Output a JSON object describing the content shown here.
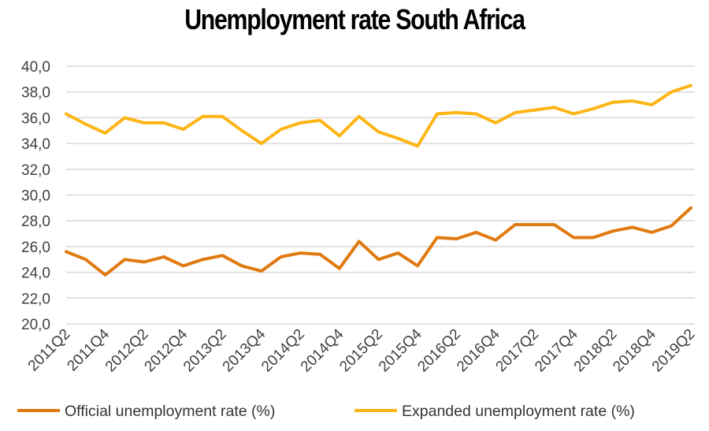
{
  "chart_data": {
    "type": "line",
    "title": "Unemployment rate South Africa",
    "xlabel": "",
    "ylabel": "",
    "ylim": [
      20,
      40
    ],
    "y_ticks": [
      "20,0",
      "22,0",
      "24,0",
      "26,0",
      "28,0",
      "30,0",
      "32,0",
      "34,0",
      "36,0",
      "38,0",
      "40,0"
    ],
    "categories": [
      "2011Q2",
      "2011Q3",
      "2011Q4",
      "2012Q1",
      "2012Q2",
      "2012Q3",
      "2012Q4",
      "2013Q1",
      "2013Q2",
      "2013Q3",
      "2013Q4",
      "2014Q1",
      "2014Q2",
      "2014Q3",
      "2014Q4",
      "2015Q1",
      "2015Q2",
      "2015Q3",
      "2015Q4",
      "2016Q1",
      "2016Q2",
      "2016Q3",
      "2016Q4",
      "2017Q1",
      "2017Q2",
      "2017Q3",
      "2017Q4",
      "2018Q1",
      "2018Q2",
      "2018Q3",
      "2018Q4",
      "2019Q1",
      "2019Q2"
    ],
    "x_tick_labels": [
      "2011Q2",
      "2011Q4",
      "2012Q2",
      "2012Q4",
      "2013Q2",
      "2013Q4",
      "2014Q2",
      "2014Q4",
      "2015Q2",
      "2015Q4",
      "2016Q2",
      "2016Q4",
      "2017Q2",
      "2017Q4",
      "2018Q2",
      "2018Q4",
      "2019Q2"
    ],
    "grid": "horizontal",
    "legend_position": "bottom",
    "series": [
      {
        "name": "Official unemployment rate (%)",
        "color": "#E07A10",
        "values": [
          25.6,
          25.0,
          23.8,
          25.0,
          24.8,
          25.2,
          24.5,
          25.0,
          25.3,
          24.5,
          24.1,
          25.2,
          25.5,
          25.4,
          24.3,
          26.4,
          25.0,
          25.5,
          24.5,
          26.7,
          26.6,
          27.1,
          26.5,
          27.7,
          27.7,
          27.7,
          26.7,
          26.7,
          27.2,
          27.5,
          27.1,
          27.6,
          29.0
        ]
      },
      {
        "name": "Expanded unemployment rate (%)",
        "color": "#FDB515",
        "values": [
          36.3,
          35.5,
          34.8,
          36.0,
          35.6,
          35.6,
          35.1,
          36.1,
          36.1,
          35.0,
          34.0,
          35.1,
          35.6,
          35.8,
          34.6,
          36.1,
          34.9,
          34.4,
          33.8,
          36.3,
          36.4,
          36.3,
          35.6,
          36.4,
          36.6,
          36.8,
          36.3,
          36.7,
          37.2,
          37.3,
          37.0,
          38.0,
          38.5
        ]
      }
    ]
  }
}
